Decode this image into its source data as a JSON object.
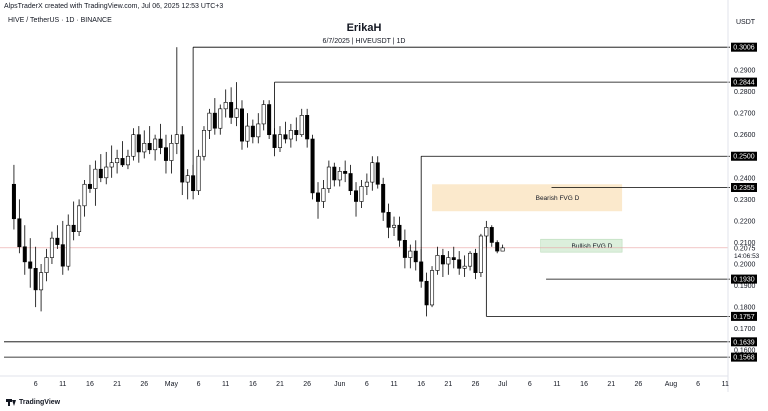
{
  "header": {
    "credit": "AlpsTraderX created with TradingView.com, Jul 06, 2025 12:53 UTC+3",
    "symbol_line": "HIVE / TetherUS · 1D · BINANCE",
    "author": "ErikaH",
    "subtitle": "6/7/2025 | HIVEUSDT | 1D",
    "currency": "USDT"
  },
  "footer": {
    "brand": "TradingView"
  },
  "colors": {
    "up_body": "#ffffff",
    "down_body": "#000000",
    "candle_border": "#000000",
    "bearish_zone": "#fbe9cc",
    "bullish_zone": "#dcefdc",
    "price_line": "#e8a3a3",
    "level_line": "#000000"
  },
  "chart_data": {
    "type": "candlestick",
    "title": "HIVE / TetherUS · 1D · BINANCE",
    "y_axis": {
      "ylim": [
        0.155,
        0.316
      ],
      "tick_labels": [
        "0.2900",
        "0.2800",
        "0.2700",
        "0.2600",
        "0.2400",
        "0.2300",
        "0.2200",
        "0.2100",
        "0.2000",
        "0.1900",
        "0.1800",
        "0.1700",
        "0.1600"
      ]
    },
    "x_axis": {
      "tick_labels": [
        "6",
        "11",
        "16",
        "21",
        "26",
        "May",
        "6",
        "11",
        "16",
        "21",
        "26",
        "Jun",
        "6",
        "11",
        "16",
        "21",
        "26",
        "Jul",
        "6",
        "11",
        "16",
        "21",
        "26",
        "Aug",
        "6",
        "11"
      ],
      "tick_indices": [
        5,
        10,
        15,
        20,
        25,
        30,
        35,
        40,
        45,
        50,
        55,
        61,
        66,
        71,
        76,
        81,
        86,
        91,
        96,
        101,
        106,
        111,
        116,
        122,
        127,
        132
      ]
    },
    "first_index": 1,
    "candles": [
      [
        0.237,
        0.246,
        0.216,
        0.221
      ],
      [
        0.221,
        0.23,
        0.205,
        0.208
      ],
      [
        0.208,
        0.218,
        0.195,
        0.201
      ],
      [
        0.201,
        0.212,
        0.189,
        0.198
      ],
      [
        0.198,
        0.208,
        0.18,
        0.188
      ],
      [
        0.188,
        0.2,
        0.178,
        0.196
      ],
      [
        0.196,
        0.207,
        0.192,
        0.203
      ],
      [
        0.203,
        0.215,
        0.2,
        0.212
      ],
      [
        0.212,
        0.218,
        0.207,
        0.209
      ],
      [
        0.209,
        0.22,
        0.195,
        0.199
      ],
      [
        0.199,
        0.223,
        0.197,
        0.218
      ],
      [
        0.218,
        0.229,
        0.211,
        0.215
      ],
      [
        0.215,
        0.23,
        0.213,
        0.227
      ],
      [
        0.227,
        0.239,
        0.222,
        0.237
      ],
      [
        0.237,
        0.246,
        0.233,
        0.235
      ],
      [
        0.235,
        0.248,
        0.227,
        0.244
      ],
      [
        0.244,
        0.251,
        0.238,
        0.24
      ],
      [
        0.24,
        0.252,
        0.237,
        0.245
      ],
      [
        0.245,
        0.255,
        0.24,
        0.247
      ],
      [
        0.247,
        0.253,
        0.242,
        0.249
      ],
      [
        0.249,
        0.257,
        0.245,
        0.246
      ],
      [
        0.246,
        0.253,
        0.244,
        0.25
      ],
      [
        0.25,
        0.263,
        0.248,
        0.26
      ],
      [
        0.26,
        0.264,
        0.247,
        0.252
      ],
      [
        0.252,
        0.262,
        0.249,
        0.256
      ],
      [
        0.256,
        0.264,
        0.251,
        0.253
      ],
      [
        0.253,
        0.26,
        0.248,
        0.258
      ],
      [
        0.258,
        0.265,
        0.251,
        0.254
      ],
      [
        0.254,
        0.26,
        0.242,
        0.248
      ],
      [
        0.248,
        0.26,
        0.242,
        0.256
      ],
      [
        0.256,
        0.3006,
        0.251,
        0.26
      ],
      [
        0.26,
        0.264,
        0.232,
        0.238
      ],
      [
        0.238,
        0.244,
        0.23,
        0.241
      ],
      [
        0.241,
        0.246,
        0.23,
        0.234
      ],
      [
        0.234,
        0.253,
        0.232,
        0.25
      ],
      [
        0.25,
        0.264,
        0.248,
        0.262
      ],
      [
        0.262,
        0.272,
        0.258,
        0.27
      ],
      [
        0.27,
        0.277,
        0.26,
        0.263
      ],
      [
        0.263,
        0.274,
        0.26,
        0.272
      ],
      [
        0.272,
        0.281,
        0.268,
        0.275
      ],
      [
        0.275,
        0.282,
        0.265,
        0.268
      ],
      [
        0.268,
        0.2844,
        0.264,
        0.272
      ],
      [
        0.272,
        0.276,
        0.253,
        0.257
      ],
      [
        0.257,
        0.27,
        0.254,
        0.264
      ],
      [
        0.264,
        0.267,
        0.256,
        0.259
      ],
      [
        0.259,
        0.27,
        0.256,
        0.265
      ],
      [
        0.265,
        0.276,
        0.262,
        0.274
      ],
      [
        0.274,
        0.276,
        0.258,
        0.26
      ],
      [
        0.26,
        0.263,
        0.25,
        0.254
      ],
      [
        0.254,
        0.264,
        0.252,
        0.26
      ],
      [
        0.26,
        0.266,
        0.256,
        0.258
      ],
      [
        0.258,
        0.265,
        0.254,
        0.262
      ],
      [
        0.262,
        0.268,
        0.257,
        0.26
      ],
      [
        0.26,
        0.272,
        0.259,
        0.269
      ],
      [
        0.269,
        0.272,
        0.254,
        0.258
      ],
      [
        0.258,
        0.26,
        0.23,
        0.233
      ],
      [
        0.233,
        0.238,
        0.221,
        0.229
      ],
      [
        0.229,
        0.239,
        0.226,
        0.235
      ],
      [
        0.235,
        0.248,
        0.233,
        0.245
      ],
      [
        0.245,
        0.247,
        0.236,
        0.239
      ],
      [
        0.239,
        0.245,
        0.236,
        0.243
      ],
      [
        0.243,
        0.248,
        0.238,
        0.242
      ],
      [
        0.242,
        0.246,
        0.232,
        0.234
      ],
      [
        0.234,
        0.238,
        0.222,
        0.229
      ],
      [
        0.229,
        0.239,
        0.226,
        0.236
      ],
      [
        0.236,
        0.242,
        0.232,
        0.238
      ],
      [
        0.238,
        0.25,
        0.234,
        0.247
      ],
      [
        0.247,
        0.25,
        0.235,
        0.237
      ],
      [
        0.237,
        0.24,
        0.22,
        0.224
      ],
      [
        0.224,
        0.228,
        0.212,
        0.217
      ],
      [
        0.217,
        0.222,
        0.213,
        0.218
      ],
      [
        0.218,
        0.222,
        0.208,
        0.211
      ],
      [
        0.211,
        0.216,
        0.198,
        0.203
      ],
      [
        0.203,
        0.209,
        0.198,
        0.206
      ],
      [
        0.206,
        0.211,
        0.197,
        0.201
      ],
      [
        0.201,
        0.207,
        0.189,
        0.192
      ],
      [
        0.192,
        0.196,
        0.1757,
        0.181
      ],
      [
        0.181,
        0.199,
        0.18,
        0.197
      ],
      [
        0.197,
        0.208,
        0.195,
        0.204
      ],
      [
        0.204,
        0.207,
        0.194,
        0.2
      ],
      [
        0.2,
        0.206,
        0.195,
        0.203
      ],
      [
        0.203,
        0.208,
        0.198,
        0.202
      ],
      [
        0.202,
        0.206,
        0.195,
        0.198
      ],
      [
        0.198,
        0.204,
        0.194,
        0.199
      ],
      [
        0.199,
        0.206,
        0.197,
        0.205
      ],
      [
        0.205,
        0.207,
        0.193,
        0.196
      ],
      [
        0.196,
        0.214,
        0.194,
        0.213
      ],
      [
        0.213,
        0.22,
        0.208,
        0.217
      ],
      [
        0.217,
        0.218,
        0.208,
        0.21
      ],
      [
        0.21,
        0.211,
        0.205,
        0.206
      ],
      [
        0.206,
        0.209,
        0.206,
        0.2075
      ]
    ],
    "zones": [
      {
        "label": "Bearish FVG D",
        "x_start": 78,
        "x_end": 113,
        "y_low": 0.2245,
        "y_high": 0.237
      },
      {
        "label": "Bullish FVG D",
        "x_start": 98,
        "x_end": 113,
        "y_low": 0.2055,
        "y_high": 0.2115
      }
    ],
    "levels": [
      {
        "value": 0.3006,
        "label": "0.3006",
        "x_start": 34
      },
      {
        "value": 0.2844,
        "label": "0.2844",
        "x_start": 49
      },
      {
        "value": 0.25,
        "label": "0.2500",
        "x_start": 76
      },
      {
        "value": 0.2355,
        "label": "0.2355",
        "x_start": 100
      },
      {
        "value": 0.193,
        "label": "0.1930",
        "x_start": 99
      },
      {
        "value": 0.1757,
        "label": "0.1757",
        "x_start": 88
      },
      {
        "value": 0.1639,
        "label": "0.1639",
        "x_start": 0
      },
      {
        "value": 0.1568,
        "label": "0.1568",
        "x_start": 0
      }
    ],
    "current_price": {
      "value": 0.2075,
      "label": "0.2075",
      "countdown": "14:06:53"
    }
  }
}
